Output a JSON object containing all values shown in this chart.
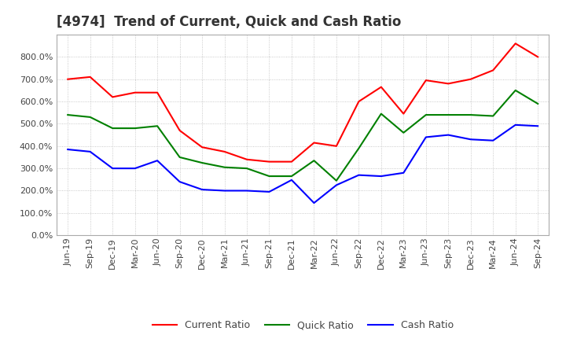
{
  "title": "[4974]  Trend of Current, Quick and Cash Ratio",
  "x_labels": [
    "Jun-19",
    "Sep-19",
    "Dec-19",
    "Mar-20",
    "Jun-20",
    "Sep-20",
    "Dec-20",
    "Mar-21",
    "Jun-21",
    "Sep-21",
    "Dec-21",
    "Mar-22",
    "Jun-22",
    "Sep-22",
    "Dec-22",
    "Mar-23",
    "Jun-23",
    "Sep-23",
    "Dec-23",
    "Mar-24",
    "Jun-24",
    "Sep-24"
  ],
  "current_ratio": [
    700,
    710,
    620,
    640,
    640,
    470,
    395,
    375,
    340,
    330,
    330,
    415,
    400,
    600,
    665,
    545,
    695,
    680,
    700,
    740,
    860,
    800
  ],
  "quick_ratio": [
    540,
    530,
    480,
    480,
    490,
    350,
    325,
    305,
    300,
    265,
    265,
    335,
    245,
    390,
    545,
    460,
    540,
    540,
    540,
    535,
    650,
    590
  ],
  "cash_ratio": [
    385,
    375,
    300,
    300,
    335,
    240,
    205,
    200,
    200,
    195,
    248,
    145,
    225,
    270,
    265,
    280,
    440,
    450,
    430,
    425,
    495,
    490
  ],
  "current_color": "#FF0000",
  "quick_color": "#008000",
  "cash_color": "#0000FF",
  "ylim": [
    0,
    900
  ],
  "yticks": [
    0,
    100,
    200,
    300,
    400,
    500,
    600,
    700,
    800
  ],
  "background_color": "#ffffff",
  "grid_color": "#bbbbbb",
  "legend_labels": [
    "Current Ratio",
    "Quick Ratio",
    "Cash Ratio"
  ],
  "title_fontsize": 12,
  "tick_fontsize": 8,
  "legend_fontsize": 9
}
